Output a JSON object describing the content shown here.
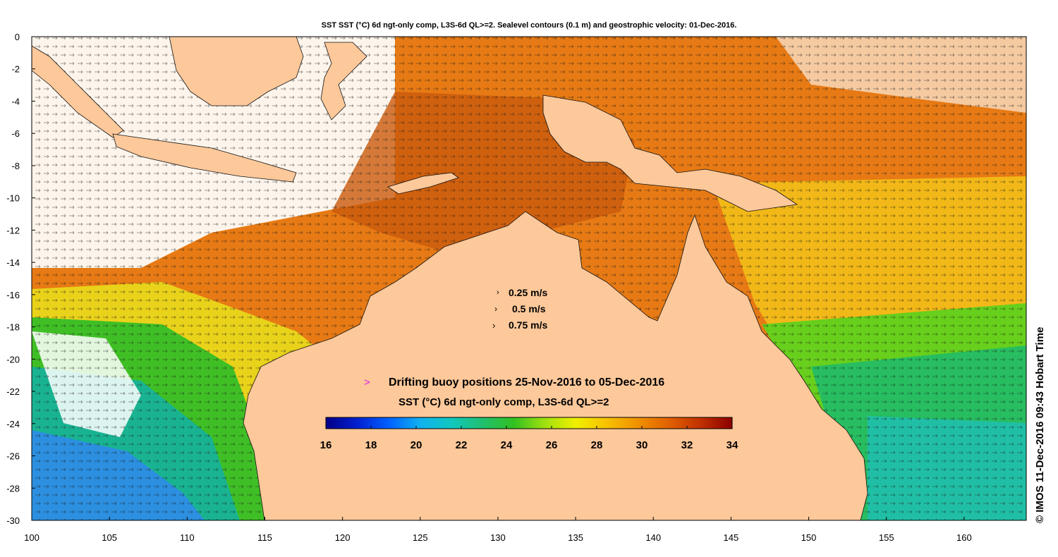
{
  "map": {
    "title": "SST SST (°C) 6d ngt-only comp, L3S-6d QL>=2. Sealevel contours (0.1 m) and geostrophic velocity: 01-Dec-2016.",
    "lon_range": [
      100,
      164
    ],
    "lat_range": [
      -30,
      0
    ],
    "lon_ticks": [
      100,
      105,
      110,
      115,
      120,
      125,
      130,
      135,
      140,
      145,
      150,
      155,
      160
    ],
    "lat_ticks": [
      0,
      -2,
      -4,
      -6,
      -8,
      -10,
      -12,
      -14,
      -16,
      -18,
      -20,
      -22,
      -24,
      -26,
      -28,
      -30
    ],
    "land_color": "#fdc89a",
    "velocity_legend": [
      "0.25 m/s",
      "0.5 m/s",
      "0.75 m/s"
    ],
    "buoy_legend": {
      "marker": ">",
      "marker_color": "#e020e0",
      "label": "Drifting buoy positions 25-Nov-2016 to 05-Dec-2016"
    },
    "colorbar": {
      "title": "SST (°C) 6d ngt-only comp, L3S-6d QL>=2",
      "min": 16,
      "max": 34,
      "ticks": [
        "16",
        "18",
        "20",
        "22",
        "24",
        "26",
        "28",
        "30",
        "32",
        "34"
      ],
      "colors": [
        "#000087",
        "#0020d0",
        "#0060ff",
        "#10b0f0",
        "#10c8c0",
        "#20c070",
        "#30c020",
        "#a0e010",
        "#f0f000",
        "#f8c000",
        "#f09000",
        "#e06000",
        "#c03000",
        "#8c0000"
      ]
    },
    "credit": "© IMOS 11-Dec-2016 09:43 Hobart Time"
  }
}
